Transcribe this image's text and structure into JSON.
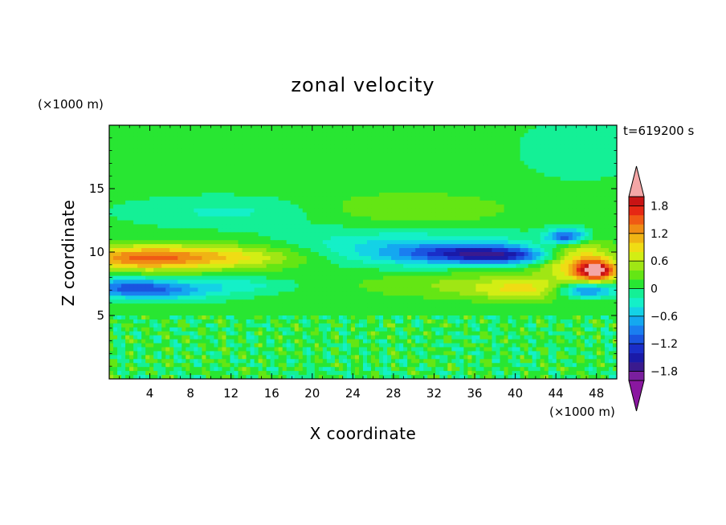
{
  "chart_data": {
    "type": "heatmap",
    "title": "zonal velocity",
    "xlabel": "X coordinate",
    "ylabel": "Z coordinate",
    "x_unit": "(×1000 m)",
    "y_unit": "(×1000 m)",
    "time_label": "t=619200 s",
    "xlim": [
      0,
      50
    ],
    "ylim": [
      0,
      20
    ],
    "x_ticks": [
      4,
      8,
      12,
      16,
      20,
      24,
      28,
      32,
      36,
      40,
      44,
      48
    ],
    "y_ticks": [
      5,
      10,
      15
    ],
    "colorbar": {
      "levels": [
        -2.0,
        -1.8,
        -1.6,
        -1.4,
        -1.2,
        -1.0,
        -0.8,
        -0.6,
        -0.4,
        -0.2,
        0.0,
        0.2,
        0.4,
        0.6,
        0.8,
        1.0,
        1.2,
        1.4,
        1.6,
        1.8,
        2.0
      ],
      "tick_labels": [
        "1.8",
        "1.2",
        "0.6",
        "0",
        "−0.6",
        "−1.2",
        "−1.8"
      ],
      "tick_values": [
        1.8,
        1.2,
        0.6,
        0.0,
        -0.6,
        -1.2,
        -1.8
      ],
      "colors": [
        "#7a1f9e",
        "#3a1a8e",
        "#1a1aa8",
        "#1a2ec8",
        "#1a55e0",
        "#1a7ef0",
        "#14a8f0",
        "#14d2e6",
        "#14f0c8",
        "#14f096",
        "#28e632",
        "#64e614",
        "#a0e614",
        "#d2ee14",
        "#f0dc14",
        "#f0b414",
        "#f08c14",
        "#f05a14",
        "#e62814",
        "#c81414"
      ],
      "over_color": "#f4a6a6",
      "under_color": "#8a17a0"
    },
    "features": [
      {
        "x": 6,
        "z": 9.6,
        "value": 1.0
      },
      {
        "x": 14,
        "z": 9.6,
        "value": 0.6
      },
      {
        "x": 3,
        "z": 7.2,
        "value": -1.0
      },
      {
        "x": 12,
        "z": 7.3,
        "value": -0.4
      },
      {
        "x": 30,
        "z": 13.4,
        "value": 0.3
      },
      {
        "x": 12,
        "z": 13.0,
        "value": -0.3
      },
      {
        "x": 35,
        "z": 9.9,
        "value": -1.2
      },
      {
        "x": 40,
        "z": 7.0,
        "value": 0.9
      },
      {
        "x": 46,
        "z": 9.5,
        "value": 1.5
      },
      {
        "x": 45,
        "z": 11.0,
        "value": -1.4
      },
      {
        "x": 48,
        "z": 8.5,
        "value": 1.8
      }
    ]
  }
}
